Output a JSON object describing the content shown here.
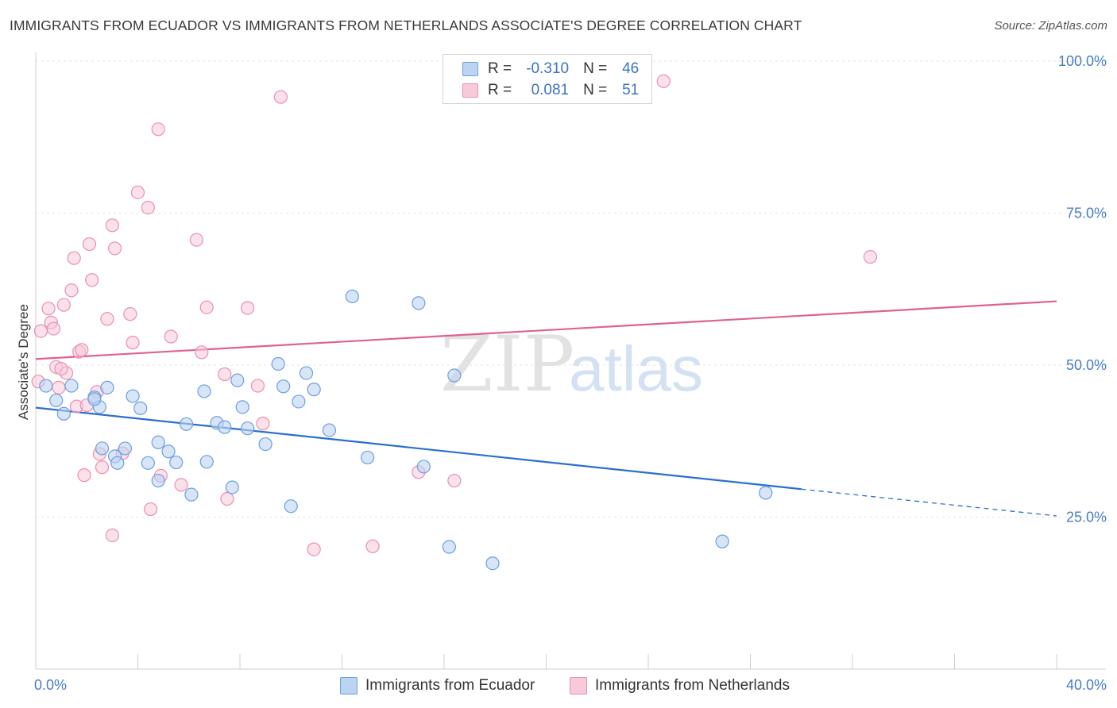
{
  "header": {
    "title": "IMMIGRANTS FROM ECUADOR VS IMMIGRANTS FROM NETHERLANDS ASSOCIATE'S DEGREE CORRELATION CHART",
    "source": "Source: ZipAtlas.com"
  },
  "watermark": {
    "zip": "ZIP",
    "atlas": "atlas"
  },
  "legend": {
    "ecuador": {
      "r_label": "R =",
      "r_value": "-0.310",
      "n_label": "N =",
      "n_value": "46"
    },
    "netherlands": {
      "r_label": "R =",
      "r_value": "0.081",
      "n_label": "N =",
      "n_value": "51"
    }
  },
  "bottom_legend": {
    "ecuador": "Immigrants from Ecuador",
    "netherlands": "Immigrants from Netherlands"
  },
  "chart_data": {
    "type": "scatter",
    "title": "IMMIGRANTS FROM ECUADOR VS IMMIGRANTS FROM NETHERLANDS ASSOCIATE'S DEGREE CORRELATION CHART",
    "xlabel": "",
    "ylabel": "Associate's Degree",
    "xlim": [
      0,
      40
    ],
    "ylim": [
      0,
      105
    ],
    "x_tick_labels": [
      "0.0%",
      "40.0%"
    ],
    "y_ticks": [
      25,
      50,
      75,
      100
    ],
    "y_tick_labels": [
      "25.0%",
      "50.0%",
      "75.0%",
      "100.0%"
    ],
    "grid": true,
    "colors": {
      "ecuador": "#6b9fe0",
      "ecuador_fill": "#bcd3f2",
      "ecuador_line": "#2a6fd0",
      "netherlands": "#ec8fae",
      "netherlands_fill": "#f8c9d8",
      "netherlands_line": "#e0628c"
    },
    "series": [
      {
        "name": "Immigrants from Ecuador",
        "points": [
          [
            0.4,
            46.6
          ],
          [
            0.8,
            44.2
          ],
          [
            1.1,
            42.0
          ],
          [
            1.4,
            46.6
          ],
          [
            2.3,
            44.7
          ],
          [
            2.5,
            43.1
          ],
          [
            2.8,
            46.3
          ],
          [
            2.3,
            44.4
          ],
          [
            2.6,
            36.3
          ],
          [
            3.1,
            35.0
          ],
          [
            3.2,
            33.9
          ],
          [
            3.5,
            36.3
          ],
          [
            3.8,
            44.9
          ],
          [
            4.1,
            42.9
          ],
          [
            4.4,
            33.9
          ],
          [
            4.8,
            37.3
          ],
          [
            4.8,
            31.0
          ],
          [
            5.2,
            35.8
          ],
          [
            5.5,
            34.0
          ],
          [
            5.9,
            40.3
          ],
          [
            6.1,
            28.7
          ],
          [
            6.6,
            45.7
          ],
          [
            6.7,
            34.1
          ],
          [
            7.1,
            40.5
          ],
          [
            7.4,
            39.8
          ],
          [
            7.7,
            29.9
          ],
          [
            7.9,
            47.5
          ],
          [
            8.1,
            43.1
          ],
          [
            8.3,
            39.6
          ],
          [
            9.0,
            37.0
          ],
          [
            9.5,
            50.2
          ],
          [
            9.7,
            46.5
          ],
          [
            10.0,
            26.8
          ],
          [
            10.3,
            44.0
          ],
          [
            10.6,
            48.7
          ],
          [
            10.9,
            46.0
          ],
          [
            11.5,
            39.3
          ],
          [
            12.4,
            61.3
          ],
          [
            13.0,
            34.8
          ],
          [
            15.0,
            60.2
          ],
          [
            15.2,
            33.3
          ],
          [
            16.2,
            20.1
          ],
          [
            16.4,
            48.3
          ],
          [
            17.9,
            17.4
          ],
          [
            26.9,
            21.0
          ],
          [
            28.6,
            29.0
          ]
        ],
        "trend": {
          "x0": 0,
          "y0": 43.0,
          "x1": 30.0,
          "y1": 29.6,
          "dash_to_x": 40,
          "dash_to_y": 25.2
        }
      },
      {
        "name": "Immigrants from Netherlands",
        "points": [
          [
            0.1,
            47.3
          ],
          [
            0.2,
            55.6
          ],
          [
            0.5,
            59.3
          ],
          [
            0.6,
            57.0
          ],
          [
            0.7,
            56.0
          ],
          [
            0.8,
            49.7
          ],
          [
            0.9,
            46.3
          ],
          [
            1.1,
            59.9
          ],
          [
            1.2,
            48.7
          ],
          [
            1.4,
            62.3
          ],
          [
            1.5,
            67.6
          ],
          [
            1.6,
            43.2
          ],
          [
            1.7,
            52.2
          ],
          [
            1.8,
            52.5
          ],
          [
            1.9,
            31.9
          ],
          [
            2.0,
            43.4
          ],
          [
            2.1,
            69.9
          ],
          [
            2.2,
            64.0
          ],
          [
            2.4,
            45.6
          ],
          [
            2.5,
            35.4
          ],
          [
            2.6,
            33.2
          ],
          [
            2.8,
            57.6
          ],
          [
            3.0,
            73.0
          ],
          [
            3.0,
            22.0
          ],
          [
            3.1,
            69.2
          ],
          [
            3.4,
            35.5
          ],
          [
            3.7,
            58.4
          ],
          [
            3.8,
            53.7
          ],
          [
            4.0,
            78.4
          ],
          [
            4.4,
            75.9
          ],
          [
            4.5,
            26.3
          ],
          [
            4.8,
            88.8
          ],
          [
            4.9,
            31.8
          ],
          [
            5.3,
            54.7
          ],
          [
            5.7,
            30.3
          ],
          [
            6.3,
            70.6
          ],
          [
            6.5,
            52.1
          ],
          [
            6.7,
            59.5
          ],
          [
            7.5,
            28.0
          ],
          [
            7.4,
            48.5
          ],
          [
            8.3,
            59.4
          ],
          [
            8.7,
            46.6
          ],
          [
            8.9,
            40.4
          ],
          [
            9.6,
            94.1
          ],
          [
            10.9,
            19.7
          ],
          [
            13.2,
            20.2
          ],
          [
            15.0,
            32.4
          ],
          [
            16.4,
            31.0
          ],
          [
            24.6,
            96.7
          ],
          [
            32.7,
            67.8
          ],
          [
            1.0,
            49.4
          ]
        ],
        "trend": {
          "x0": 0,
          "y0": 51.0,
          "x1": 40,
          "y1": 60.5
        }
      }
    ]
  }
}
